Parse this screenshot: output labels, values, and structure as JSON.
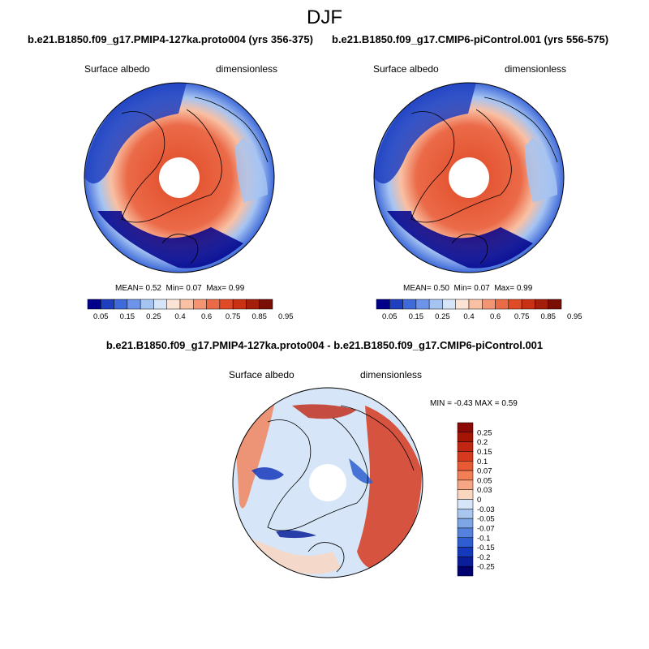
{
  "figure": {
    "season": "DJF"
  },
  "panels": [
    {
      "case": "b.e21.B1850.f09_g17.PMIP4-127ka.proto004 (yrs 356-375)",
      "variable": "Surface albedo",
      "units": "dimensionless",
      "stats": {
        "mean_label": "MEAN=",
        "mean": "0.52",
        "min_label": "Min=",
        "min": "0.07",
        "max_label": "Max=",
        "max": "0.99"
      }
    },
    {
      "case": "b.e21.B1850.f09_g17.CMIP6-piControl.001 (yrs 556-575)",
      "variable": "Surface albedo",
      "units": "dimensionless",
      "stats": {
        "mean_label": "MEAN=",
        "mean": "0.50",
        "min_label": "Min=",
        "min": "0.07",
        "max_label": "Max=",
        "max": "0.99"
      }
    }
  ],
  "diff_panel": {
    "title": "b.e21.B1850.f09_g17.PMIP4-127ka.proto004 - b.e21.B1850.f09_g17.CMIP6-piControl.001",
    "variable": "Surface albedo",
    "units": "dimensionless",
    "stats": {
      "min_label": "MIN =",
      "min": "-0.43",
      "max_label": "MAX =",
      "max": "0.59"
    }
  },
  "chart_data": [
    {
      "type": "polar-map",
      "title": "b.e21.B1850.f09_g17.PMIP4-127ka.proto004 (yrs 356-375)",
      "colorbar": {
        "orientation": "horizontal",
        "tick_labels": [
          "0.05",
          "0.15",
          "0.25",
          "0.4",
          "0.6",
          "0.75",
          "0.85",
          "0.95"
        ],
        "colors": [
          "#00008b",
          "#1e3fbf",
          "#3f6ad9",
          "#6d94e8",
          "#a6c4f2",
          "#d6e6f8",
          "#fbe3d6",
          "#f9c0a3",
          "#f39473",
          "#eb6a48",
          "#e04a27",
          "#c93115",
          "#a41e0c",
          "#7a0f05"
        ]
      },
      "mean": 0.52,
      "min": 0.07,
      "max": 0.99
    },
    {
      "type": "polar-map",
      "title": "b.e21.B1850.f09_g17.CMIP6-piControl.001 (yrs 556-575)",
      "colorbar": {
        "orientation": "horizontal",
        "tick_labels": [
          "0.05",
          "0.15",
          "0.25",
          "0.4",
          "0.6",
          "0.75",
          "0.85",
          "0.95"
        ],
        "colors": [
          "#00008b",
          "#1e3fbf",
          "#3f6ad9",
          "#6d94e8",
          "#a6c4f2",
          "#d6e6f8",
          "#fbe3d6",
          "#f9c0a3",
          "#f39473",
          "#eb6a48",
          "#e04a27",
          "#c93115",
          "#a41e0c",
          "#7a0f05"
        ]
      },
      "mean": 0.5,
      "min": 0.07,
      "max": 0.99
    },
    {
      "type": "polar-map",
      "title": "b.e21.B1850.f09_g17.PMIP4-127ka.proto004 - b.e21.B1850.f09_g17.CMIP6-piControl.001",
      "colorbar": {
        "orientation": "vertical",
        "tick_labels": [
          "0.25",
          "0.2",
          "0.15",
          "0.1",
          "0.07",
          "0.05",
          "0.03",
          "0",
          "-0.03",
          "-0.05",
          "-0.07",
          "-0.1",
          "-0.15",
          "-0.2",
          "-0.25"
        ],
        "colors": [
          "#8b0a05",
          "#a51505",
          "#c02612",
          "#d63a1e",
          "#e85a34",
          "#f27f55",
          "#f7a685",
          "#fbd6bf",
          "#d6e6f8",
          "#a9c6ef",
          "#7ea6e6",
          "#5582dc",
          "#2f5ed0",
          "#1638bb",
          "#0a1e9a",
          "#000070"
        ]
      },
      "min": -0.43,
      "max": 0.59
    }
  ]
}
